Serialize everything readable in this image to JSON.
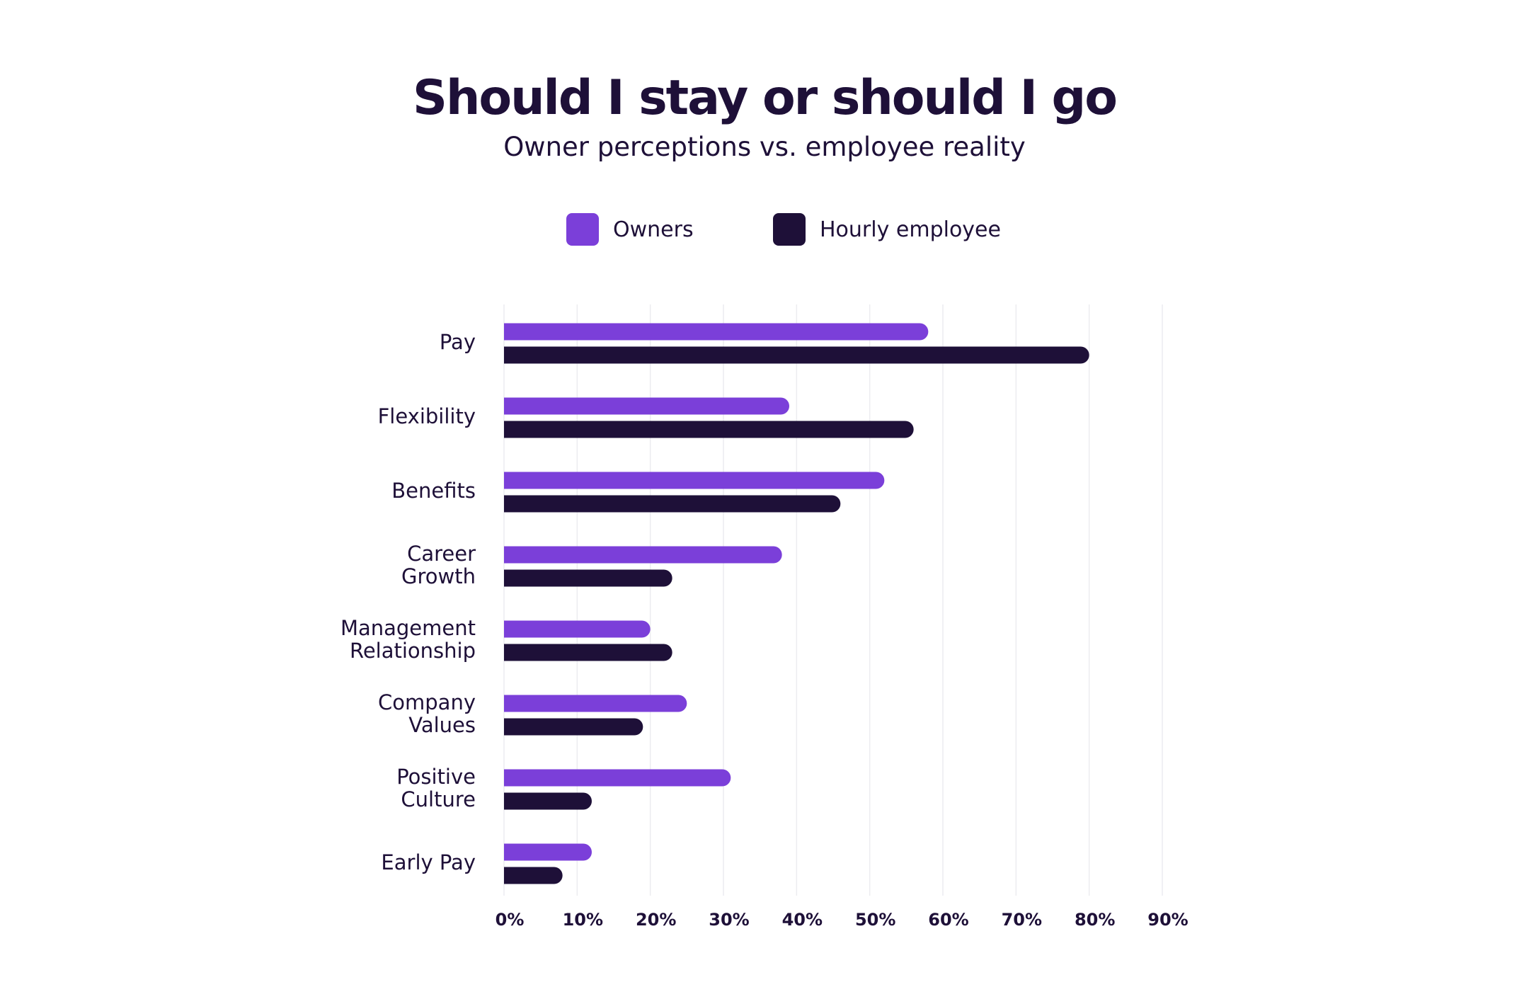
{
  "chart_data": {
    "type": "bar",
    "orientation": "horizontal",
    "title": "Should I stay or should I go",
    "subtitle": "Owner perceptions vs. employee reality",
    "categories": [
      [
        "Pay"
      ],
      [
        "Flexibility"
      ],
      [
        "Benefits"
      ],
      [
        "Career",
        "Growth"
      ],
      [
        "Management",
        "Relationship"
      ],
      [
        "Company",
        "Values"
      ],
      [
        "Positive",
        "Culture"
      ],
      [
        "Early Pay"
      ]
    ],
    "series": [
      {
        "name": "Owners",
        "color": "#7b3fd9",
        "values": [
          58,
          39,
          52,
          38,
          20,
          25,
          31,
          12
        ]
      },
      {
        "name": "Hourly employee",
        "color": "#1e1038",
        "values": [
          80,
          56,
          46,
          23,
          23,
          19,
          12,
          8
        ]
      }
    ],
    "xlim": [
      0,
      90
    ],
    "xticks": [
      0,
      10,
      20,
      30,
      40,
      50,
      60,
      70,
      80,
      90
    ],
    "tick_format": "{v}%",
    "grid": "vertical",
    "legend_position": "top-center"
  }
}
